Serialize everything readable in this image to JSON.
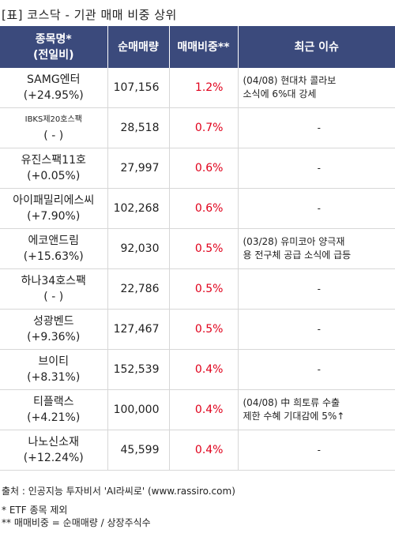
{
  "title": "[표] 코스닥 - 기관 매매 비중 상위",
  "header": {
    "name": "종목명*\n(전일비)",
    "volume": "순매매량",
    "ratio": "매매비중**",
    "issue": "최근 이슈"
  },
  "rows": [
    {
      "name": "SAMG엔터",
      "change": "(+24.95%)",
      "volume": "107,156",
      "ratio": "1.2%",
      "issue": "(04/08) 현대차 콜라보\n소식에 6%대 강세"
    },
    {
      "name": "IBKS제20호스팩",
      "change": "( - )",
      "volume": "28,518",
      "ratio": "0.7%",
      "issue": "-"
    },
    {
      "name": "유진스팩11호",
      "change": "(+0.05%)",
      "volume": "27,997",
      "ratio": "0.6%",
      "issue": "-"
    },
    {
      "name": "아이패밀리에스씨",
      "change": "(+7.90%)",
      "volume": "102,268",
      "ratio": "0.6%",
      "issue": "-"
    },
    {
      "name": "에코앤드림",
      "change": "(+15.63%)",
      "volume": "92,030",
      "ratio": "0.5%",
      "issue": "(03/28) 유미코아 양극재\n용 전구체 공급 소식에 급등"
    },
    {
      "name": "하나34호스팩",
      "change": "( - )",
      "volume": "22,786",
      "ratio": "0.5%",
      "issue": "-"
    },
    {
      "name": "성광벤드",
      "change": "(+9.36%)",
      "volume": "127,467",
      "ratio": "0.5%",
      "issue": "-"
    },
    {
      "name": "브이티",
      "change": "(+8.31%)",
      "volume": "152,539",
      "ratio": "0.4%",
      "issue": "-"
    },
    {
      "name": "티플랙스",
      "change": "(+4.21%)",
      "volume": "100,000",
      "ratio": "0.4%",
      "issue": "(04/08) 中 희토류 수출\n제한 수혜 기대감에 5%↑"
    },
    {
      "name": "나노신소재",
      "change": "(+12.24%)",
      "volume": "45,599",
      "ratio": "0.4%",
      "issue": "-"
    }
  ],
  "footer": {
    "source": "출처 : 인공지능 투자비서 'AI라씨로' (www.rassiro.com)",
    "note1": "* ETF 종목 제외",
    "note2": "** 매매비중 = 순매매량 / 상장주식수"
  }
}
